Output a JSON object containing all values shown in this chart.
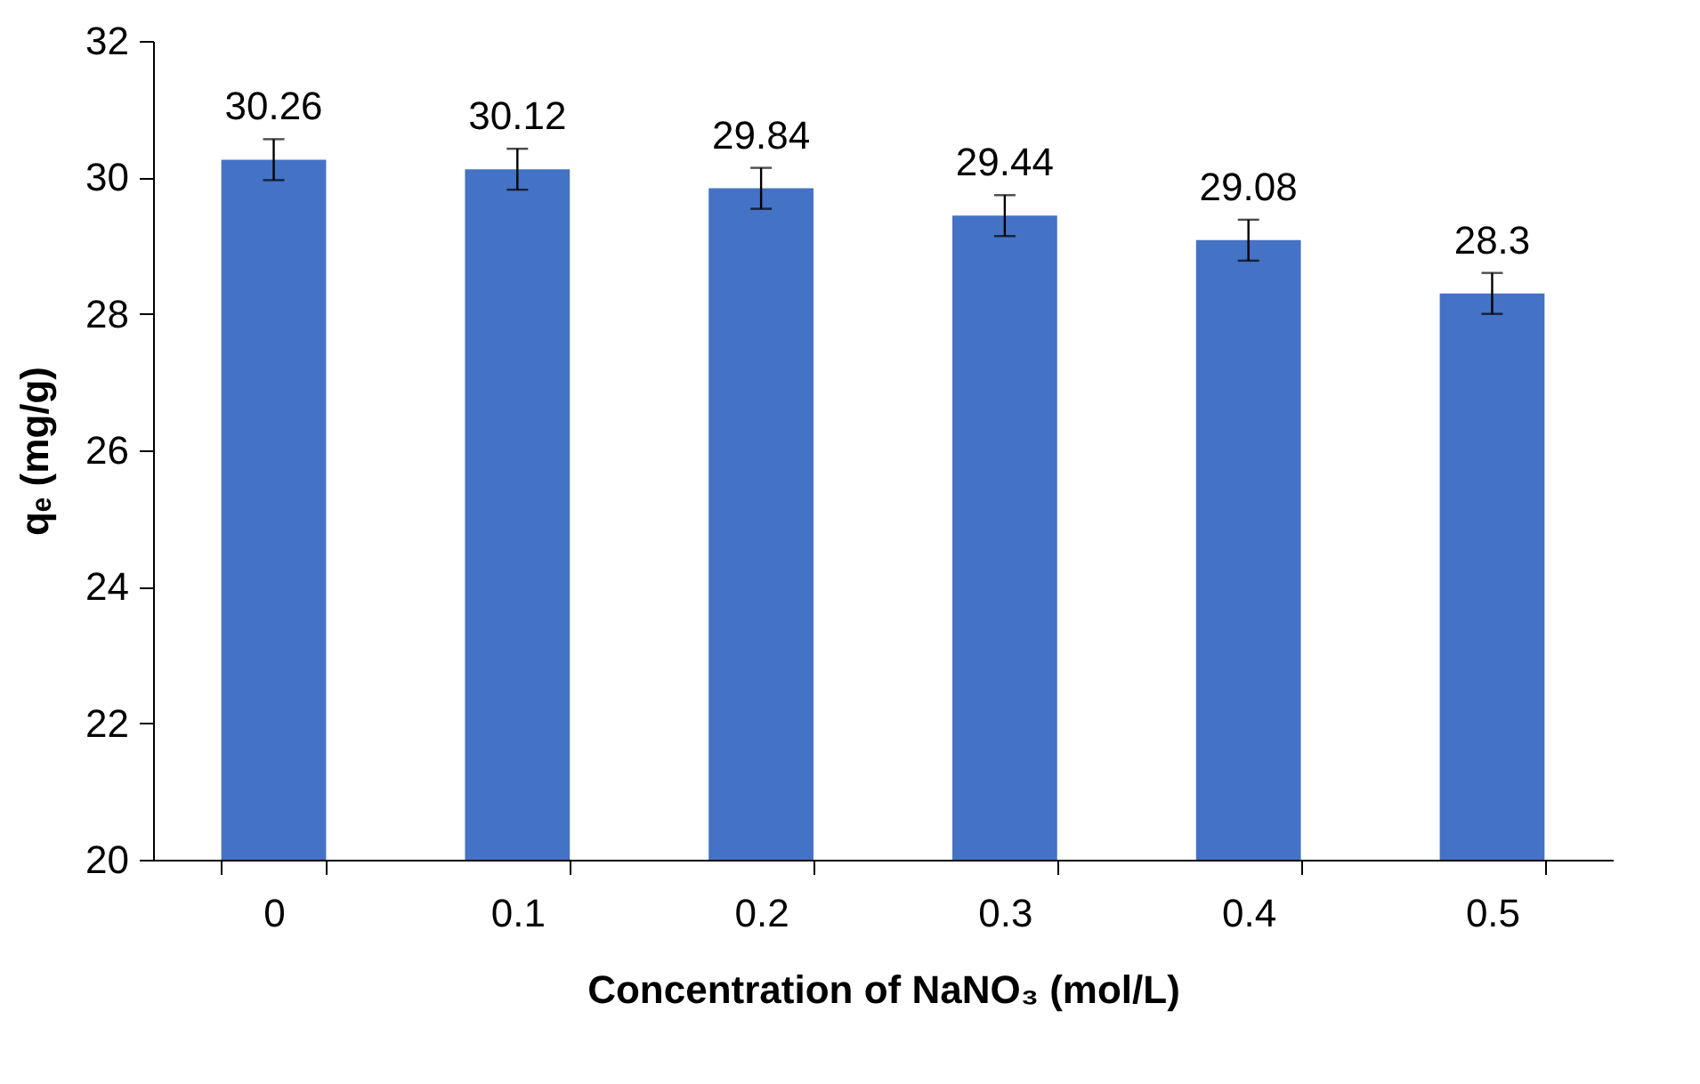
{
  "chart_data": {
    "type": "bar",
    "xlabel": "Concentration of  NaNO₃ (mol/L)",
    "ylabel": "qₑ (mg/g)",
    "categories": [
      "0",
      "0.1",
      "0.2",
      "0.3",
      "0.4",
      "0.5"
    ],
    "values": [
      30.26,
      30.12,
      29.84,
      29.44,
      29.08,
      28.3
    ],
    "errors": [
      0.3,
      0.3,
      0.3,
      0.3,
      0.3,
      0.3
    ],
    "color": "#4472c4",
    "ylim": [
      20,
      32
    ],
    "yticks": [
      20,
      22,
      24,
      26,
      28,
      30,
      32
    ],
    "grid": false,
    "data_labels": true
  }
}
